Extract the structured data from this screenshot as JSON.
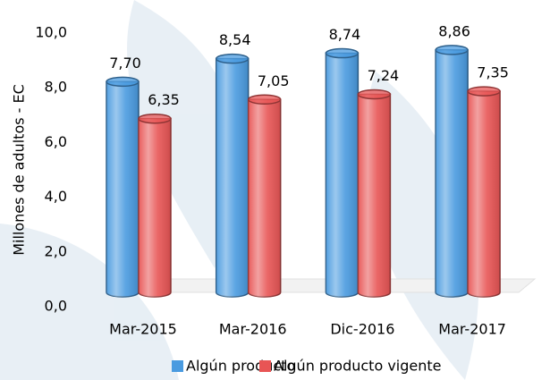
{
  "chart_data": {
    "type": "cylinder-bar",
    "y_label": "Millones de adultos - EC",
    "categories": [
      "Mar-2015",
      "Mar-2016",
      "Dic-2016",
      "Mar-2017"
    ],
    "series": [
      {
        "name": "Algún producto",
        "color": "#4a9be0",
        "values": [
          7.7,
          8.54,
          8.74,
          8.86
        ],
        "value_labels": [
          "7,70",
          "8,54",
          "8,74",
          "8,86"
        ]
      },
      {
        "name": "Algún producto vigente",
        "color": "#e85555",
        "values": [
          6.35,
          7.05,
          7.24,
          7.35
        ],
        "value_labels": [
          "6,35",
          "7,05",
          "7,24",
          "7,35"
        ]
      }
    ],
    "ylim": [
      0,
      10
    ],
    "yticks": [
      {
        "value": 0,
        "label": "0,0"
      },
      {
        "value": 2,
        "label": "2,0"
      },
      {
        "value": 4,
        "label": "4,0"
      },
      {
        "value": 6,
        "label": "6,0"
      },
      {
        "value": 8,
        "label": "8,0"
      },
      {
        "value": 10,
        "label": "10,0"
      }
    ]
  }
}
